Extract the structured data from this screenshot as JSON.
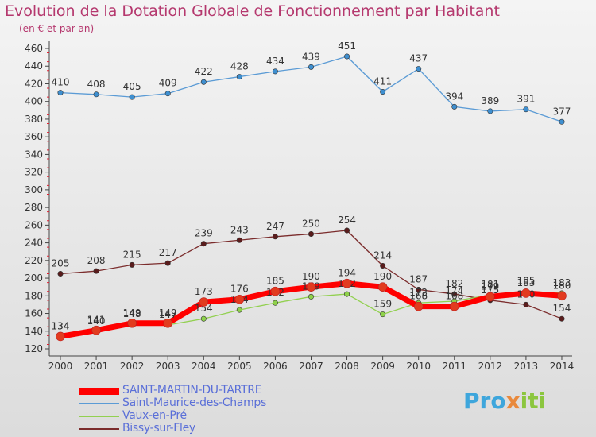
{
  "header": {
    "title": "Evolution de la Dotation Globale de Fonctionnement par Habitant",
    "subtitle": "(en € et par an)"
  },
  "logo": {
    "part1": "Pro",
    "part2": "x",
    "part3": "iti"
  },
  "chart_data": {
    "type": "line",
    "title": "Evolution de la Dotation Globale de Fonctionnement par Habitant",
    "subtitle": "(en € et par an)",
    "ylim": [
      120,
      460
    ],
    "yticks": [
      120,
      140,
      160,
      180,
      200,
      220,
      240,
      260,
      280,
      300,
      320,
      340,
      360,
      380,
      400,
      420,
      440,
      460
    ],
    "x": [
      "2000",
      "2001",
      "2002",
      "2003",
      "2004",
      "2005",
      "2006",
      "2007",
      "2008",
      "2009",
      "2010",
      "2011",
      "2012",
      "2013",
      "2014"
    ],
    "grid": false,
    "legend_position": "bottom",
    "series": [
      {
        "name": "SAINT-MARTIN-DU-TARTRE",
        "color": "#ff0000",
        "marker": "#e23b1f",
        "width": 7,
        "values": [
          134,
          141,
          149,
          149,
          173,
          176,
          185,
          190,
          194,
          190,
          168,
          168,
          179,
          183,
          180
        ]
      },
      {
        "name": "Saint-Maurice-des-Champs",
        "color": "#5b9bd5",
        "marker": "#3e8fd0",
        "width": 1.3,
        "values": [
          410,
          408,
          405,
          409,
          422,
          428,
          434,
          439,
          451,
          411,
          437,
          394,
          389,
          391,
          377
        ]
      },
      {
        "name": "Vaux-en-Pré",
        "color": "#92d050",
        "marker": "#8ed14a",
        "width": 1.3,
        "values": [
          134,
          140,
          148,
          147,
          154,
          164,
          172,
          179,
          182,
          159,
          172,
          174,
          181,
          185,
          183
        ]
      },
      {
        "name": "Bissy-sur-Fley",
        "color": "#7b2c2c",
        "marker": "#5a1c1c",
        "width": 1.3,
        "values": [
          205,
          208,
          215,
          217,
          239,
          243,
          247,
          250,
          254,
          214,
          187,
          182,
          175,
          170,
          154
        ]
      }
    ]
  }
}
